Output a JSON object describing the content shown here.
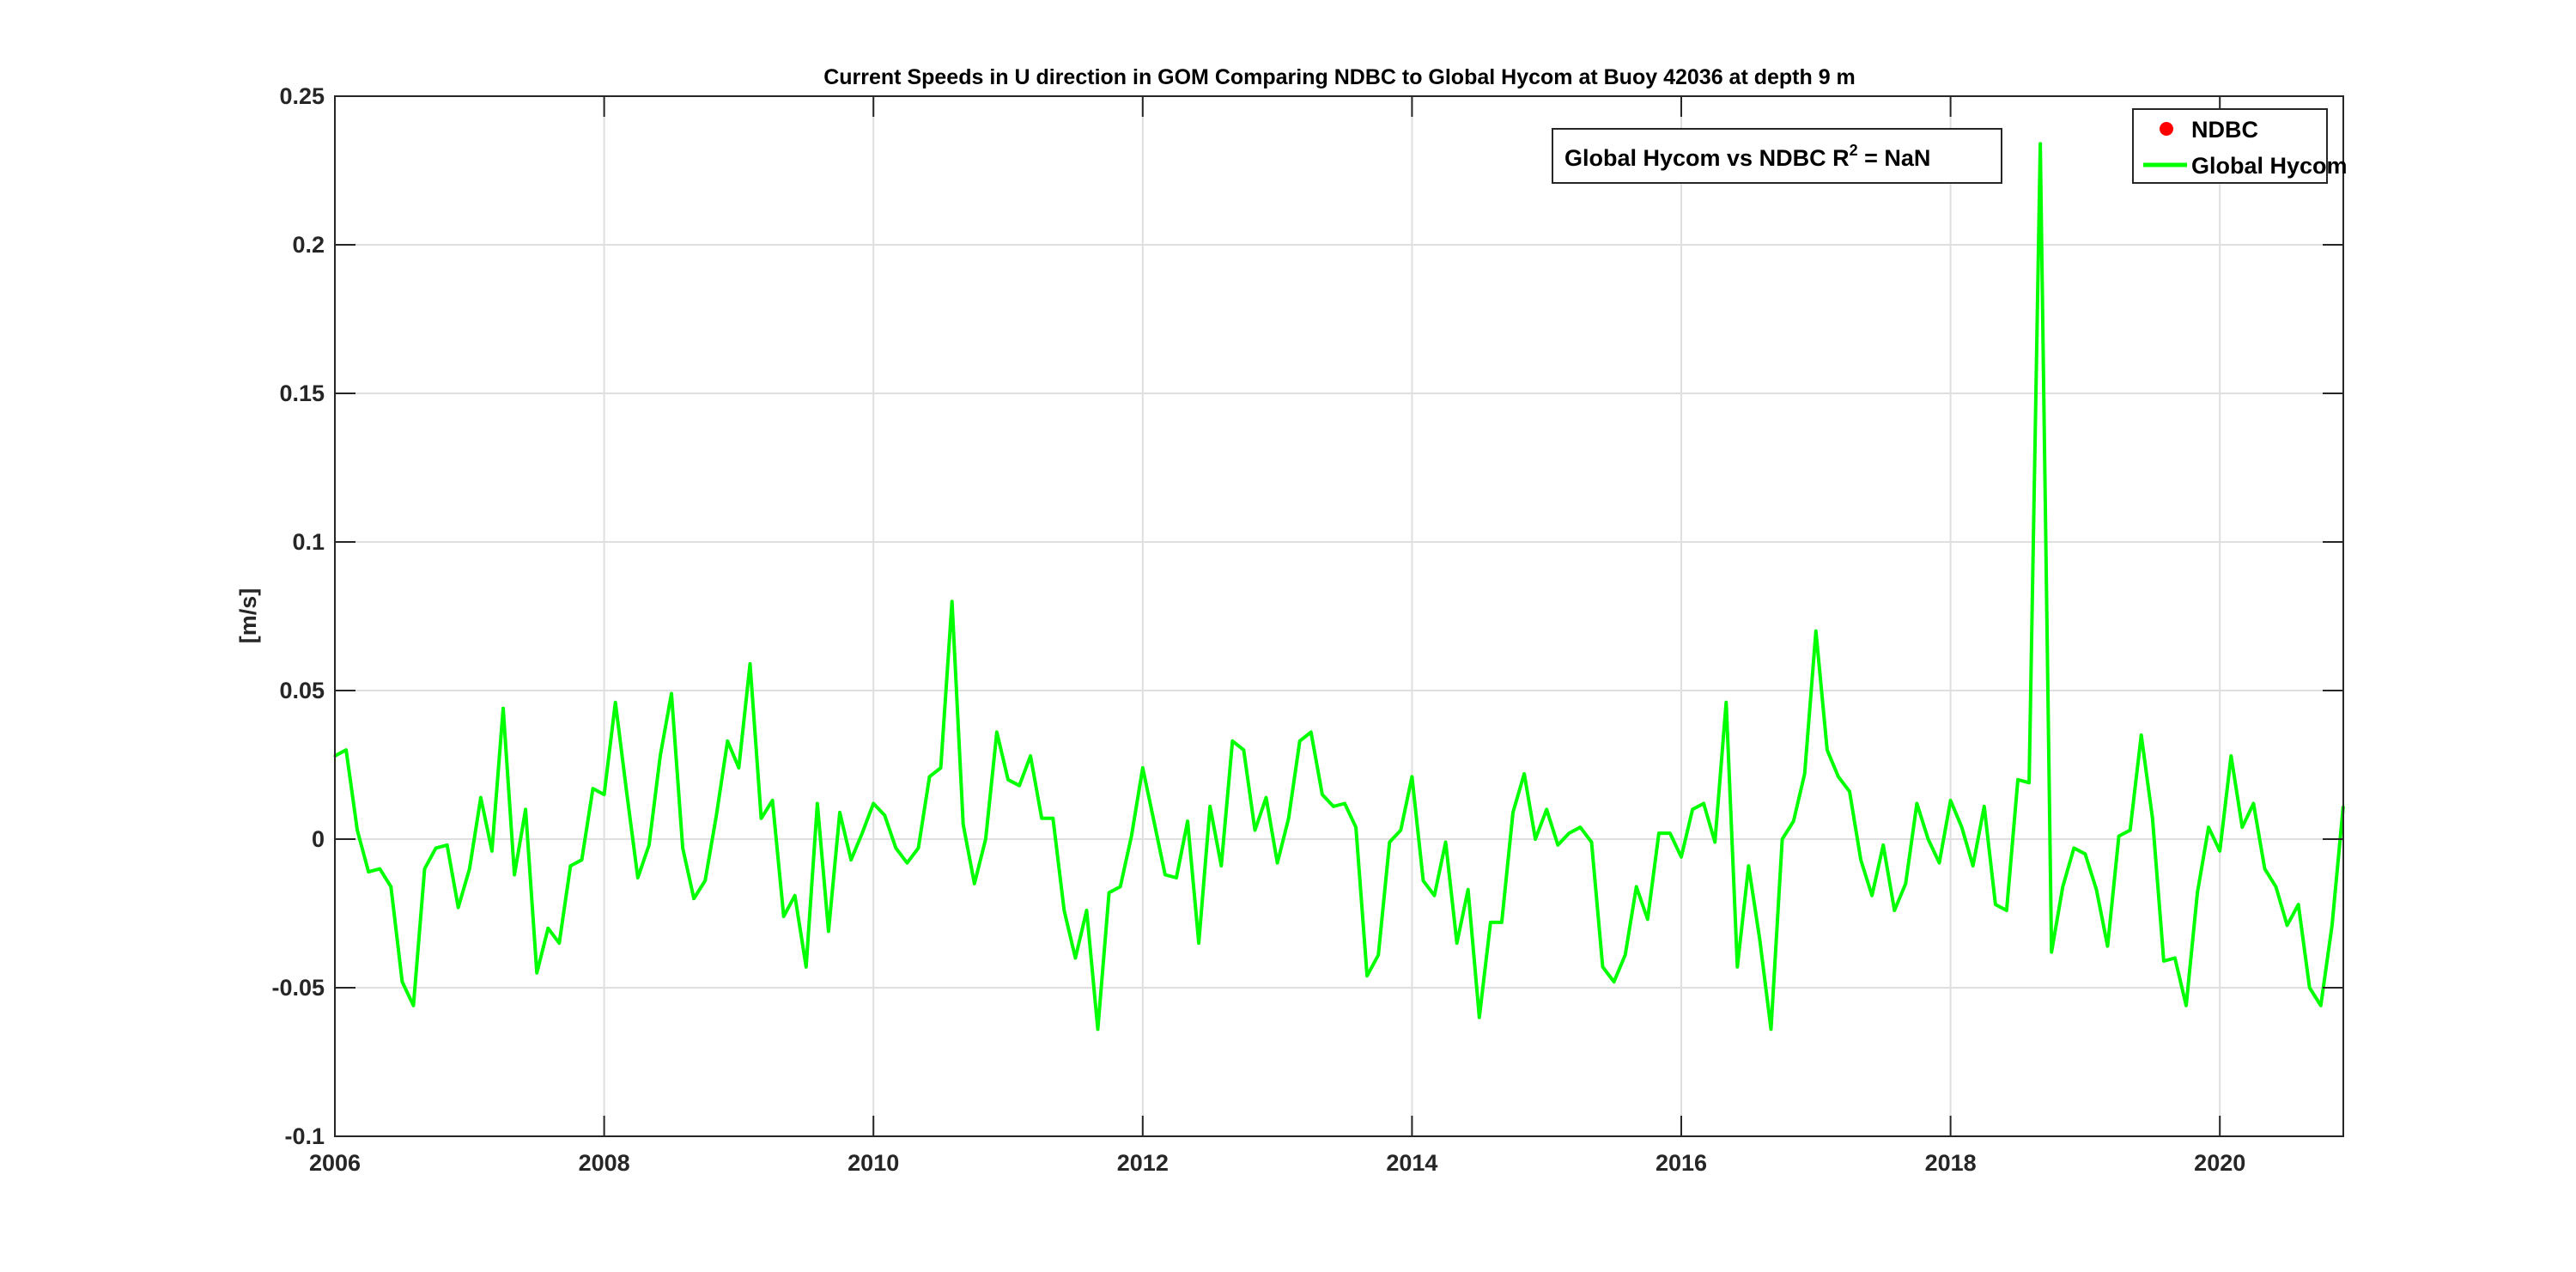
{
  "chart_data": {
    "type": "line",
    "title": "Current Speeds in U direction in GOM Comparing NDBC to Global Hycom at Buoy  42036  at depth  9 m",
    "xlabel": "",
    "ylabel": "[m/s]",
    "xlim": [
      2006,
      2020.917
    ],
    "ylim": [
      -0.1,
      0.25
    ],
    "xticks": [
      "2006",
      "2008",
      "2010",
      "2012",
      "2014",
      "2016",
      "2018",
      "2020"
    ],
    "xtick_values": [
      2006,
      2008,
      2010,
      2012,
      2014,
      2016,
      2018,
      2020
    ],
    "yticks": [
      "-0.1",
      "-0.05",
      "0",
      "0.05",
      "0.1",
      "0.15",
      "0.2",
      "0.25"
    ],
    "ytick_values": [
      -0.1,
      -0.05,
      0,
      0.05,
      0.1,
      0.15,
      0.2,
      0.25
    ],
    "grid": true,
    "legend_position": "top-right",
    "annotation": {
      "text": "Global Hycom vs NDBC R",
      "sup": "2",
      "suffix": " = NaN"
    },
    "series": [
      {
        "name": "NDBC",
        "color": "#ff0000",
        "marker": "dot",
        "values": []
      },
      {
        "name": "Global Hycom",
        "color": "#00ff00",
        "x_start": 2006,
        "x_step_months": 1,
        "values": [
          0.028,
          0.03,
          0.003,
          -0.011,
          -0.01,
          -0.016,
          -0.048,
          -0.056,
          -0.01,
          -0.003,
          -0.002,
          -0.023,
          -0.01,
          0.014,
          -0.004,
          0.044,
          -0.012,
          0.01,
          -0.045,
          -0.03,
          -0.035,
          -0.009,
          -0.007,
          0.017,
          0.015,
          0.046,
          0.016,
          -0.013,
          -0.002,
          0.028,
          0.049,
          -0.003,
          -0.02,
          -0.014,
          0.008,
          0.033,
          0.024,
          0.059,
          0.007,
          0.013,
          -0.026,
          -0.019,
          -0.043,
          0.012,
          -0.031,
          0.009,
          -0.007,
          0.002,
          0.012,
          0.008,
          -0.003,
          -0.008,
          -0.003,
          0.021,
          0.024,
          0.08,
          0.005,
          -0.015,
          0.0,
          0.036,
          0.02,
          0.018,
          0.028,
          0.007,
          0.007,
          -0.024,
          -0.04,
          -0.024,
          -0.064,
          -0.018,
          -0.016,
          0.001,
          0.024,
          0.006,
          -0.012,
          -0.013,
          0.006,
          -0.035,
          0.011,
          -0.009,
          0.033,
          0.03,
          0.003,
          0.014,
          -0.008,
          0.007,
          0.033,
          0.036,
          0.015,
          0.011,
          0.012,
          0.004,
          -0.046,
          -0.039,
          -0.001,
          0.003,
          0.021,
          -0.014,
          -0.019,
          -0.001,
          -0.035,
          -0.017,
          -0.06,
          -0.028,
          -0.028,
          0.009,
          0.022,
          0.0,
          0.01,
          -0.002,
          0.002,
          0.004,
          -0.001,
          -0.043,
          -0.048,
          -0.039,
          -0.016,
          -0.027,
          0.002,
          0.002,
          -0.006,
          0.01,
          0.012,
          -0.001,
          0.046,
          -0.043,
          -0.009,
          -0.034,
          -0.064,
          0.0,
          0.006,
          0.022,
          0.07,
          0.03,
          0.021,
          0.016,
          -0.007,
          -0.019,
          -0.002,
          -0.024,
          -0.015,
          0.012,
          0.0,
          -0.008,
          0.013,
          0.004,
          -0.009,
          0.011,
          -0.022,
          -0.024,
          0.02,
          0.019,
          0.234,
          -0.038,
          -0.016,
          -0.003,
          -0.005,
          -0.017,
          -0.036,
          0.001,
          0.003,
          0.035,
          0.007,
          -0.041,
          -0.04,
          -0.056,
          -0.018,
          0.004,
          -0.004,
          0.028,
          0.004,
          0.012,
          -0.01,
          -0.016,
          -0.029,
          -0.022,
          -0.05,
          -0.056,
          -0.029,
          0.011
        ]
      }
    ]
  }
}
